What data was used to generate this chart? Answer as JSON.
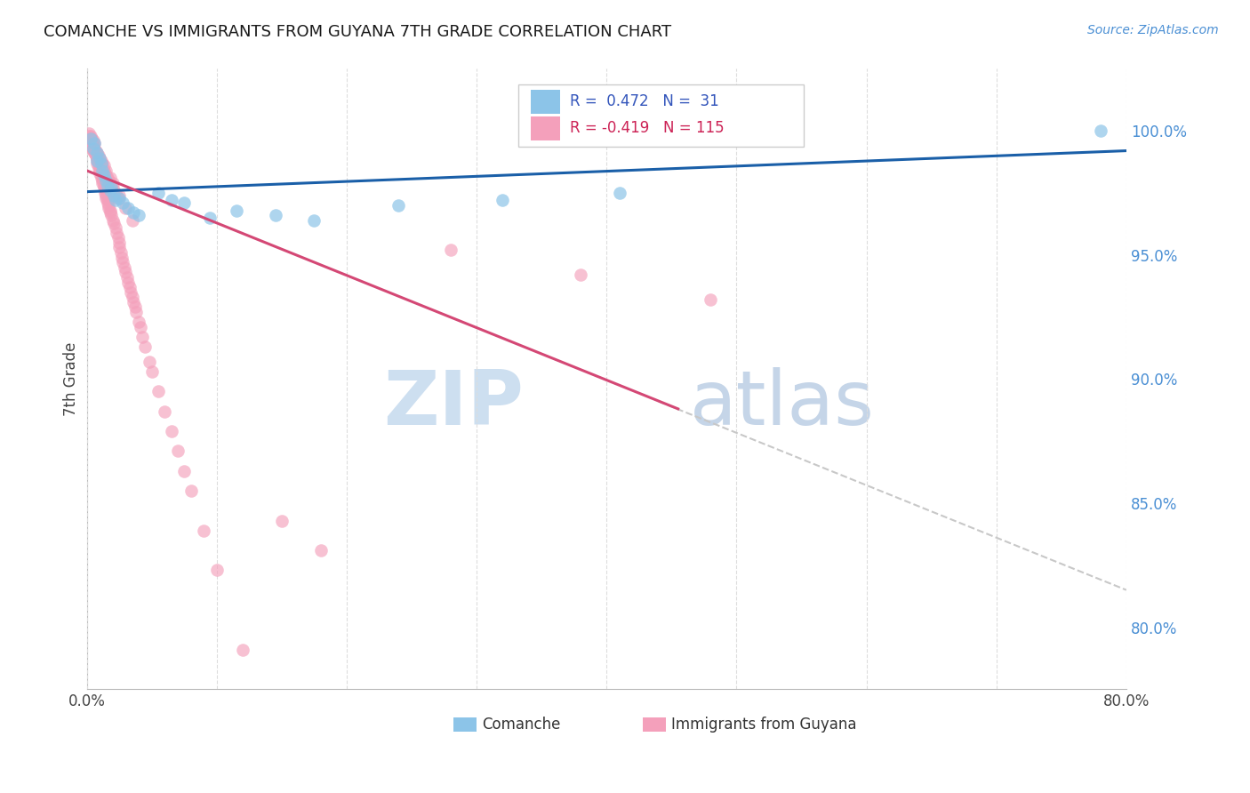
{
  "title": "COMANCHE VS IMMIGRANTS FROM GUYANA 7TH GRADE CORRELATION CHART",
  "source": "Source: ZipAtlas.com",
  "ylabel": "7th Grade",
  "ytick_labels": [
    "100.0%",
    "95.0%",
    "90.0%",
    "85.0%",
    "80.0%"
  ],
  "ytick_positions": [
    1.0,
    0.95,
    0.9,
    0.85,
    0.8
  ],
  "xlim": [
    0.0,
    0.8
  ],
  "ylim": [
    0.775,
    1.025
  ],
  "legend_label1": "Comanche",
  "legend_label2": "Immigrants from Guyana",
  "r1": 0.472,
  "n1": 31,
  "r2": -0.419,
  "n2": 115,
  "color_blue": "#8cc4e8",
  "color_pink": "#f4a0bb",
  "color_blue_line": "#1a5fa8",
  "color_pink_line": "#d44875",
  "color_dashed_line": "#c8c8c8",
  "watermark_zip_color": "#cddff0",
  "watermark_atlas_color": "#c5d5e8",
  "blue_line_x0": 0.0,
  "blue_line_x1": 0.8,
  "blue_line_y0": 0.9755,
  "blue_line_y1": 0.992,
  "pink_line_x0": 0.0,
  "pink_line_x1": 0.455,
  "pink_line_y0": 0.984,
  "pink_line_y1": 0.888,
  "dash_line_x0": 0.44,
  "dash_line_x1": 0.8,
  "dash_line_y0": 0.891,
  "dash_line_y1": 0.815,
  "comanche_x": [
    0.003,
    0.005,
    0.006,
    0.008,
    0.008,
    0.01,
    0.011,
    0.012,
    0.013,
    0.015,
    0.016,
    0.018,
    0.019,
    0.021,
    0.022,
    0.025,
    0.028,
    0.032,
    0.036,
    0.04,
    0.055,
    0.065,
    0.075,
    0.095,
    0.115,
    0.145,
    0.175,
    0.24,
    0.32,
    0.41,
    0.78
  ],
  "comanche_y": [
    0.997,
    0.993,
    0.995,
    0.991,
    0.988,
    0.989,
    0.987,
    0.984,
    0.982,
    0.98,
    0.978,
    0.976,
    0.977,
    0.974,
    0.972,
    0.973,
    0.971,
    0.969,
    0.967,
    0.966,
    0.975,
    0.972,
    0.971,
    0.965,
    0.968,
    0.966,
    0.964,
    0.97,
    0.972,
    0.975,
    1.0
  ],
  "guyana_x": [
    0.002,
    0.003,
    0.003,
    0.004,
    0.005,
    0.005,
    0.006,
    0.007,
    0.007,
    0.008,
    0.008,
    0.008,
    0.009,
    0.009,
    0.01,
    0.01,
    0.011,
    0.011,
    0.012,
    0.012,
    0.013,
    0.013,
    0.014,
    0.014,
    0.015,
    0.015,
    0.016,
    0.016,
    0.017,
    0.017,
    0.018,
    0.018,
    0.019,
    0.02,
    0.021,
    0.022,
    0.023,
    0.024,
    0.025,
    0.025,
    0.026,
    0.027,
    0.028,
    0.029,
    0.03,
    0.031,
    0.032,
    0.033,
    0.034,
    0.035,
    0.036,
    0.037,
    0.038,
    0.04,
    0.041,
    0.043,
    0.045,
    0.048,
    0.05,
    0.055,
    0.06,
    0.065,
    0.07,
    0.075,
    0.08,
    0.09,
    0.1,
    0.12,
    0.15,
    0.18,
    0.003,
    0.004,
    0.005,
    0.006,
    0.007,
    0.008,
    0.009,
    0.01,
    0.011,
    0.012,
    0.013,
    0.014,
    0.015,
    0.016,
    0.017,
    0.018,
    0.019,
    0.02,
    0.022,
    0.024,
    0.003,
    0.004,
    0.005,
    0.006,
    0.007,
    0.008,
    0.009,
    0.01,
    0.011,
    0.012,
    0.013,
    0.015,
    0.018,
    0.02,
    0.025,
    0.03,
    0.035,
    0.28,
    0.38,
    0.48,
    0.002,
    0.003,
    0.004,
    0.005,
    0.006
  ],
  "guyana_y": [
    0.998,
    0.997,
    0.996,
    0.995,
    0.994,
    0.993,
    0.992,
    0.991,
    0.99,
    0.989,
    0.988,
    0.987,
    0.986,
    0.985,
    0.984,
    0.983,
    0.982,
    0.981,
    0.98,
    0.979,
    0.978,
    0.977,
    0.976,
    0.975,
    0.974,
    0.973,
    0.972,
    0.971,
    0.97,
    0.969,
    0.968,
    0.967,
    0.966,
    0.964,
    0.963,
    0.961,
    0.959,
    0.957,
    0.955,
    0.953,
    0.951,
    0.949,
    0.947,
    0.945,
    0.943,
    0.941,
    0.939,
    0.937,
    0.935,
    0.933,
    0.931,
    0.929,
    0.927,
    0.923,
    0.921,
    0.917,
    0.913,
    0.907,
    0.903,
    0.895,
    0.887,
    0.879,
    0.871,
    0.863,
    0.855,
    0.839,
    0.823,
    0.791,
    0.843,
    0.831,
    0.994,
    0.993,
    0.992,
    0.991,
    0.99,
    0.989,
    0.988,
    0.987,
    0.986,
    0.985,
    0.984,
    0.983,
    0.982,
    0.981,
    0.98,
    0.979,
    0.978,
    0.977,
    0.975,
    0.973,
    0.996,
    0.995,
    0.994,
    0.993,
    0.992,
    0.991,
    0.99,
    0.989,
    0.988,
    0.987,
    0.986,
    0.984,
    0.981,
    0.979,
    0.974,
    0.969,
    0.964,
    0.952,
    0.942,
    0.932,
    0.999,
    0.998,
    0.997,
    0.996,
    0.995
  ]
}
